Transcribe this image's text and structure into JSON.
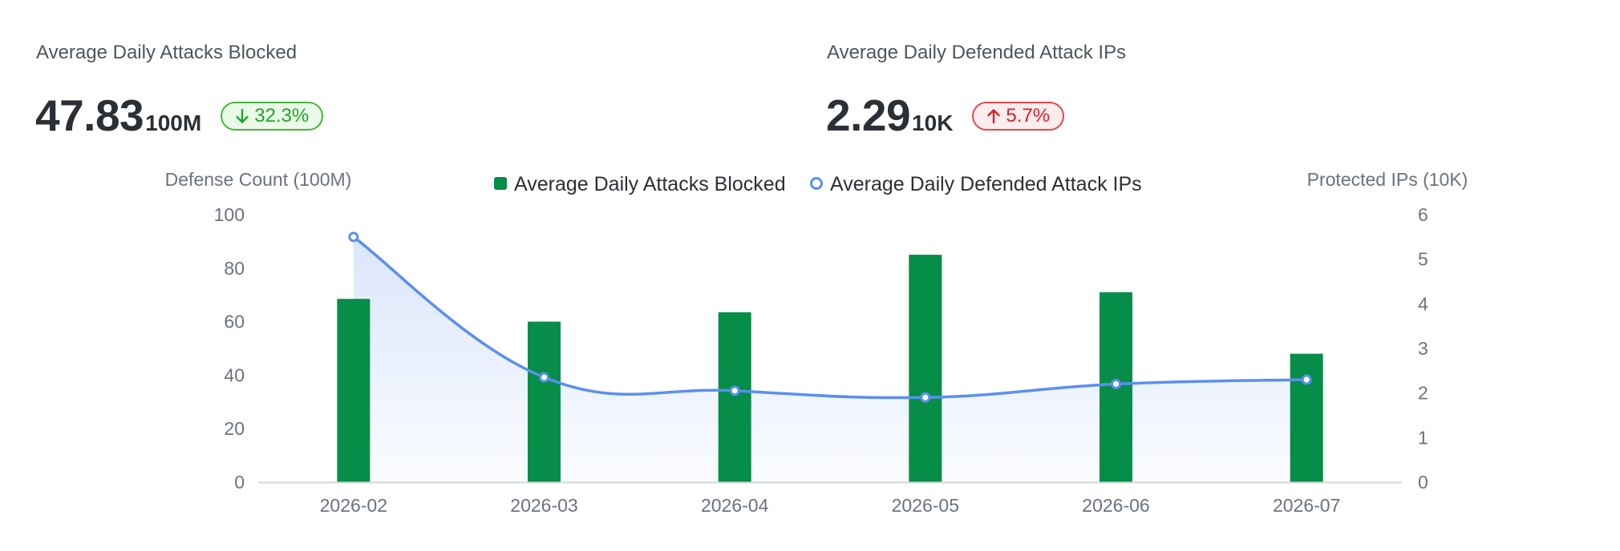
{
  "stats": [
    {
      "title": "Average Daily Attacks Blocked",
      "value": "47.83",
      "unit": "100M",
      "change": "32.3%",
      "direction": "down",
      "change_color": "#22a52d"
    },
    {
      "title": "Average Daily Defended Attack IPs",
      "value": "2.29",
      "unit": "10K",
      "change": "5.7%",
      "direction": "up",
      "change_color": "#d3232a"
    }
  ],
  "chart_data": {
    "type": "bar",
    "categories": [
      "2026-02",
      "2026-03",
      "2026-04",
      "2026-05",
      "2026-06",
      "2026-07"
    ],
    "series": [
      {
        "name": "Average Daily Attacks Blocked",
        "type": "bar",
        "axis": "left",
        "color": "#068d48",
        "values": [
          68.5,
          60,
          63.5,
          85,
          71,
          48
        ]
      },
      {
        "name": "Average Daily Defended Attack IPs",
        "type": "line",
        "smooth": true,
        "area": true,
        "axis": "right",
        "color": "#5b8ff0",
        "values": [
          5.5,
          2.35,
          2.05,
          1.9,
          2.2,
          2.3
        ]
      }
    ],
    "left_axis": {
      "label": "Defense Count (100M)",
      "range": [
        0,
        100
      ],
      "ticks": [
        0,
        20,
        40,
        60,
        80,
        100
      ]
    },
    "right_axis": {
      "label": "Protected IPs (10K)",
      "range": [
        0,
        6
      ],
      "ticks": [
        0,
        1,
        2,
        3,
        4,
        5,
        6
      ]
    },
    "legend_position": "top-center",
    "grid": false
  }
}
